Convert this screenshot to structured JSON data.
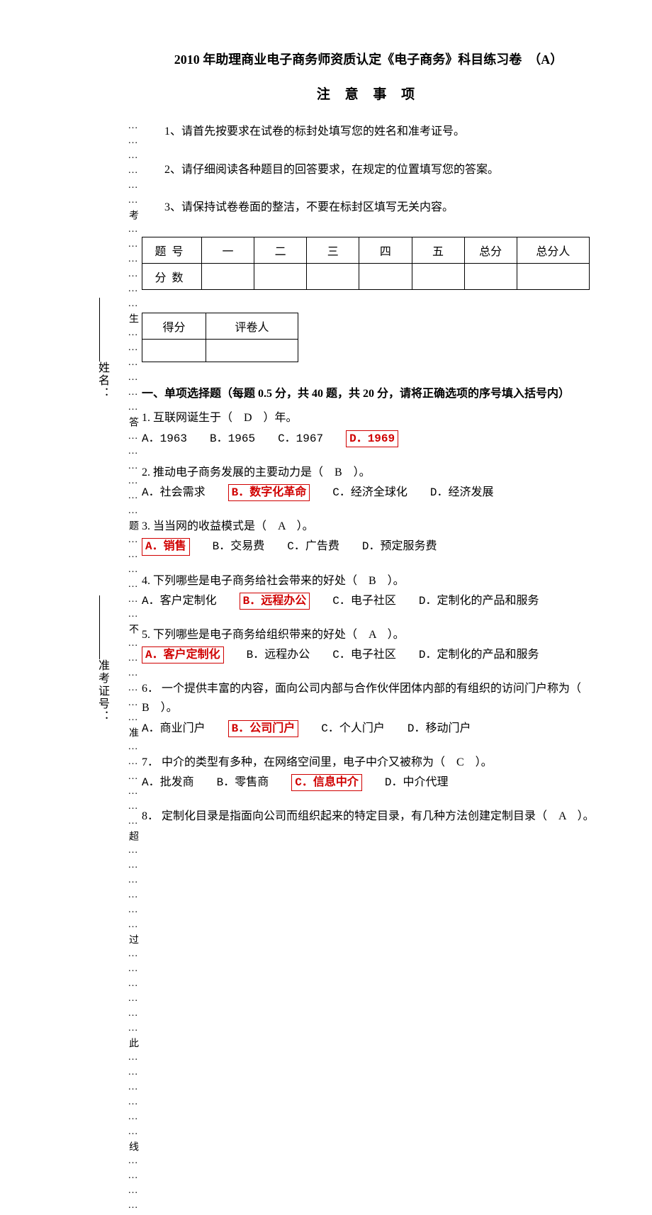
{
  "page_title": "2010 年助理商业电子商务师资质认定《电子商务》科目练习卷　（A）",
  "notice_title": "注 意 事 项",
  "notices": [
    "1、请首先按要求在试卷的标封处填写您的姓名和准考证号。",
    "2、请仔细阅读各种题目的回答要求，在规定的位置填写您的答案。",
    "3、请保持试卷卷面的整洁，不要在标封区填写无关内容。"
  ],
  "score_table": {
    "row1": [
      "题号",
      "一",
      "二",
      "三",
      "四",
      "五",
      "总分",
      "总分人"
    ],
    "row2_label": "分数"
  },
  "grade_table": {
    "h1": "得分",
    "h2": "评卷人"
  },
  "section1_title": "一、单项选择题（每题 0.5 分，共 40 题，共 20 分，请将正确选项的序号填入括号内）",
  "sidebar": {
    "name_label": "姓名：",
    "id_label": "准考证号：",
    "dotted": "………………考………………生………………答………………题………………不………………准………………超………………过………………此………………线…………"
  },
  "questions": [
    {
      "num": "1.",
      "stem": "互联网诞生于（　D　）年。",
      "opts": [
        {
          "t": "A．1963",
          "hl": false
        },
        {
          "t": "B．1965",
          "hl": false
        },
        {
          "t": "C．1967",
          "hl": false
        },
        {
          "t": "D．1969",
          "hl": true
        }
      ]
    },
    {
      "num": "2.",
      "stem": "推动电子商务发展的主要动力是（　B　）。",
      "opts": [
        {
          "t": "A．社会需求",
          "hl": false
        },
        {
          "t": "B．数字化革命",
          "hl": true
        },
        {
          "t": "C．经济全球化",
          "hl": false
        },
        {
          "t": "D．经济发展",
          "hl": false
        }
      ]
    },
    {
      "num": "3.",
      "stem": "当当网的收益模式是（　A　）。",
      "opts": [
        {
          "t": "A．销售",
          "hl": true
        },
        {
          "t": "B．交易费",
          "hl": false
        },
        {
          "t": "C．广告费",
          "hl": false
        },
        {
          "t": "D．预定服务费",
          "hl": false
        }
      ]
    },
    {
      "num": "4.",
      "stem": "下列哪些是电子商务给社会带来的好处（　B　）。",
      "opts": [
        {
          "t": "A．客户定制化",
          "hl": false
        },
        {
          "t": "B．远程办公",
          "hl": true
        },
        {
          "t": "C．电子社区",
          "hl": false
        },
        {
          "t": "D．定制化的产品和服务",
          "hl": false
        }
      ]
    },
    {
      "num": "5.",
      "stem": "下列哪些是电子商务给组织带来的好处（　A　）。",
      "opts": [
        {
          "t": "A．客户定制化",
          "hl": true
        },
        {
          "t": "B．远程办公",
          "hl": false
        },
        {
          "t": "C．电子社区",
          "hl": false
        },
        {
          "t": "D．定制化的产品和服务",
          "hl": false
        }
      ]
    },
    {
      "num": "6．",
      "stem": "一个提供丰富的内容，面向公司内部与合作伙伴团体内部的有组织的访问门户称为（　B　）。",
      "opts": [
        {
          "t": "A．商业门户",
          "hl": false
        },
        {
          "t": "B．公司门户",
          "hl": true
        },
        {
          "t": "C．个人门户",
          "hl": false
        },
        {
          "t": "D．移动门户",
          "hl": false
        }
      ]
    },
    {
      "num": "7．",
      "stem": "中介的类型有多种，在网络空间里，电子中介又被称为（　C　）。",
      "opts": [
        {
          "t": "A．批发商",
          "hl": false
        },
        {
          "t": "B．零售商",
          "hl": false
        },
        {
          "t": "C．信息中介",
          "hl": true
        },
        {
          "t": "D．中介代理",
          "hl": false
        }
      ]
    },
    {
      "num": "8．",
      "stem": "定制化目录是指面向公司而组织起来的特定目录，有几种方法创建定制目录（　A　）。",
      "opts": []
    }
  ],
  "colors": {
    "answer": "#d00000",
    "text": "#000000"
  }
}
